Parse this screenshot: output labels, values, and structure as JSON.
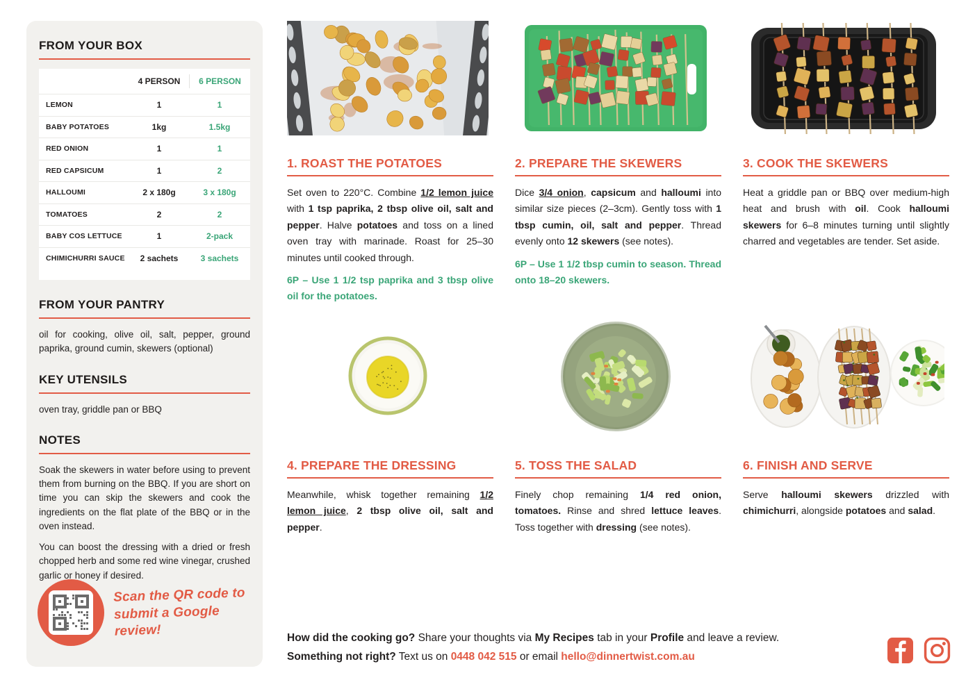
{
  "colors": {
    "accent_orange": "#e25b45",
    "accent_green": "#3aa577",
    "text": "#221f1f",
    "panel": "#f2f1ee"
  },
  "sidebar": {
    "box": {
      "title": "FROM YOUR BOX",
      "col_headers": [
        "4 PERSON",
        "6 PERSON"
      ],
      "rows": [
        {
          "name": "LEMON",
          "p4": "1",
          "p6": "1"
        },
        {
          "name": "BABY POTATOES",
          "p4": "1kg",
          "p6": "1.5kg"
        },
        {
          "name": "RED ONION",
          "p4": "1",
          "p6": "1"
        },
        {
          "name": "RED CAPSICUM",
          "p4": "1",
          "p6": "2"
        },
        {
          "name": "HALLOUMI",
          "p4": "2 x 180g",
          "p6": "3 x 180g"
        },
        {
          "name": "TOMATOES",
          "p4": "2",
          "p6": "2"
        },
        {
          "name": "BABY COS LETTUCE",
          "p4": "1",
          "p6": "2-pack"
        },
        {
          "name": "CHIMICHURRI SAUCE",
          "p4": "2 sachets",
          "p6": "3 sachets"
        }
      ]
    },
    "pantry": {
      "title": "FROM YOUR PANTRY",
      "text": "oil for cooking, olive oil, salt, pepper, ground paprika, ground cumin, skewers (optional)"
    },
    "utensils": {
      "title": "KEY UTENSILS",
      "text": "oven tray, griddle pan or BBQ"
    },
    "notes": {
      "title": "NOTES",
      "paragraphs": [
        "Soak the skewers in water before using to prevent them from burning on the BBQ. If you are short on time you can skip the skewers and cook the ingredients on the flat plate of the BBQ or in the oven instead.",
        "You can boost the dressing with a dried or fresh chopped herb and some red wine vinegar, crushed garlic or honey if desired."
      ]
    },
    "qr": {
      "line1": "Scan the QR code to",
      "line2": "submit a Google review!"
    }
  },
  "steps": [
    {
      "title": "1. ROAST THE POTATOES",
      "photo": "roasted-baby-potatoes-on-oven-tray",
      "body": [
        {
          "t": "Set oven to 220°C. Combine "
        },
        {
          "t": "1/2 lemon juice",
          "c": "bu"
        },
        {
          "t": " with "
        },
        {
          "t": "1 tsp paprika, 2 tbsp olive oil, salt and pepper",
          "c": "b"
        },
        {
          "t": ". Halve "
        },
        {
          "t": "potatoes",
          "c": "b"
        },
        {
          "t": " and toss on a lined oven tray with marinade. Roast for 25–30 minutes until cooked through."
        }
      ],
      "tip": "6P – Use 1 1/2 tsp paprika and 3 tbsp olive oil for the potatoes."
    },
    {
      "title": "2. PREPARE THE SKEWERS",
      "photo": "raw-skewers-on-green-chopping-board",
      "body": [
        {
          "t": "Dice "
        },
        {
          "t": "3/4 onion",
          "c": "bu"
        },
        {
          "t": ", "
        },
        {
          "t": "capsicum",
          "c": "b"
        },
        {
          "t": " and "
        },
        {
          "t": "halloumi",
          "c": "b"
        },
        {
          "t": " into similar size pieces (2–3cm). Gently toss with "
        },
        {
          "t": "1 tbsp cumin, oil, salt and pepper",
          "c": "b"
        },
        {
          "t": ". Thread evenly onto "
        },
        {
          "t": "12 skewers",
          "c": "b"
        },
        {
          "t": " (see notes)."
        }
      ],
      "tip": "6P – Use 1 1/2 tbsp cumin to season. Thread onto 18–20 skewers."
    },
    {
      "title": "3. COOK THE SKEWERS",
      "photo": "skewers-cooking-on-griddle-pan",
      "body": [
        {
          "t": "Heat a griddle pan or BBQ over medium-high heat and brush with "
        },
        {
          "t": "oil",
          "c": "b"
        },
        {
          "t": ". Cook "
        },
        {
          "t": "halloumi skewers",
          "c": "b"
        },
        {
          "t": " for 6–8 minutes turning until slightly charred and vegetables are tender. Set aside."
        }
      ],
      "tip": ""
    },
    {
      "title": "4. PREPARE THE DRESSING",
      "photo": "dressing-in-glass-bowl",
      "body": [
        {
          "t": "Meanwhile, whisk together remaining "
        },
        {
          "t": "1/2 lemon juice",
          "c": "bu"
        },
        {
          "t": ", "
        },
        {
          "t": "2 tbsp olive oil, salt and pepper",
          "c": "b"
        },
        {
          "t": "."
        }
      ],
      "tip": ""
    },
    {
      "title": "5. TOSS THE SALAD",
      "photo": "tossed-salad-in-bowl",
      "body": [
        {
          "t": "Finely chop remaining "
        },
        {
          "t": "1/4 red onion, tomatoes.",
          "c": "b"
        },
        {
          "t": " Rinse and shred "
        },
        {
          "t": "lettuce leaves",
          "c": "b"
        },
        {
          "t": ". Toss together with "
        },
        {
          "t": "dressing",
          "c": "b"
        },
        {
          "t": " (see notes)."
        }
      ],
      "tip": ""
    },
    {
      "title": "6. FINISH AND SERVE",
      "photo": "plated-skewers-potatoes-and-salad",
      "body": [
        {
          "t": "Serve "
        },
        {
          "t": "halloumi skewers",
          "c": "b"
        },
        {
          "t": " drizzled with "
        },
        {
          "t": "chimichurri",
          "c": "b"
        },
        {
          "t": ", alongside "
        },
        {
          "t": "potatoes",
          "c": "b"
        },
        {
          "t": " and "
        },
        {
          "t": "salad",
          "c": "b"
        },
        {
          "t": "."
        }
      ],
      "tip": ""
    }
  ],
  "footer": {
    "line1": [
      {
        "t": "How did the cooking go?",
        "c": "b"
      },
      {
        "t": " Share your thoughts via "
      },
      {
        "t": "My Recipes",
        "c": "b"
      },
      {
        "t": " tab in your "
      },
      {
        "t": "Profile",
        "c": "b"
      },
      {
        "t": " and leave a review."
      }
    ],
    "line2": [
      {
        "t": "Something not right?",
        "c": "b"
      },
      {
        "t": " Text us on "
      },
      {
        "t": "0448 042 515",
        "c": "o"
      },
      {
        "t": " or email "
      },
      {
        "t": "hello@dinnertwist.com.au",
        "c": "o"
      }
    ]
  },
  "icons": {
    "facebook": "facebook-icon",
    "instagram": "instagram-icon",
    "qr": "qr-code"
  }
}
